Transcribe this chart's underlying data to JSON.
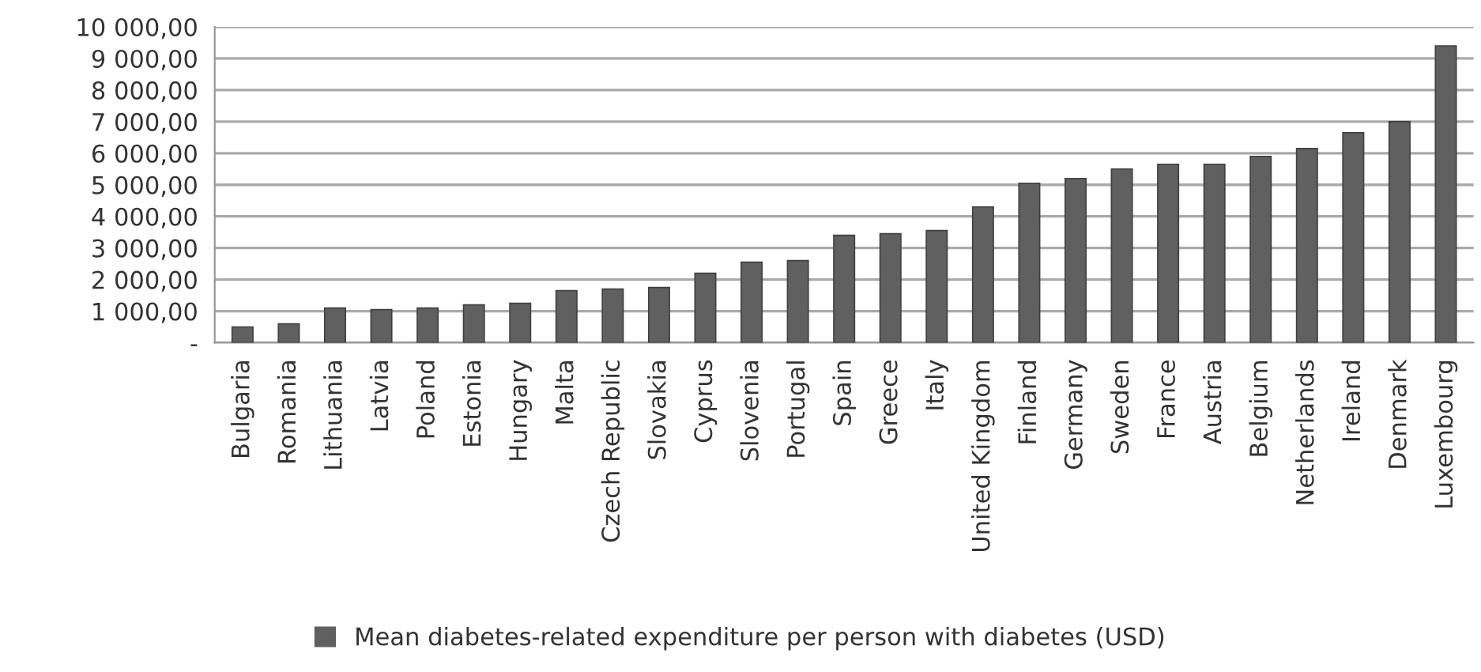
{
  "chart_data": {
    "type": "bar",
    "categories": [
      "Bulgaria",
      "Romania",
      "Lithuania",
      "Latvia",
      "Poland",
      "Estonia",
      "Hungary",
      "Malta",
      "Czech Republic",
      "Slovakia",
      "Cyprus",
      "Slovenia",
      "Portugal",
      "Spain",
      "Greece",
      "Italy",
      "United Kingdom",
      "Finland",
      "Germany",
      "Sweden",
      "France",
      "Austria",
      "Belgium",
      "Netherlands",
      "Ireland",
      "Denmark",
      "Luxembourg"
    ],
    "series": [
      {
        "name": "Mean diabetes-related expenditure per person with diabetes (USD)",
        "color": "#606060",
        "values": [
          500,
          600,
          1100,
          1050,
          1100,
          1200,
          1250,
          1650,
          1700,
          1750,
          2200,
          2550,
          2600,
          3400,
          3450,
          3550,
          4300,
          5050,
          5200,
          5500,
          5650,
          5650,
          5900,
          6150,
          6650,
          7000,
          9400
        ]
      }
    ],
    "ylim": [
      0,
      10000
    ],
    "yticks": [
      {
        "value": 0,
        "label": "-"
      },
      {
        "value": 1000,
        "label": "1 000,00"
      },
      {
        "value": 2000,
        "label": "2 000,00"
      },
      {
        "value": 3000,
        "label": "3 000,00"
      },
      {
        "value": 4000,
        "label": "4 000,00"
      },
      {
        "value": 5000,
        "label": "5 000,00"
      },
      {
        "value": 6000,
        "label": "6 000,00"
      },
      {
        "value": 7000,
        "label": "7 000,00"
      },
      {
        "value": 8000,
        "label": "8 000,00"
      },
      {
        "value": 9000,
        "label": "9 000,00"
      },
      {
        "value": 10000,
        "label": "10 000,00"
      }
    ],
    "grid": "y",
    "legend": "bottom"
  }
}
